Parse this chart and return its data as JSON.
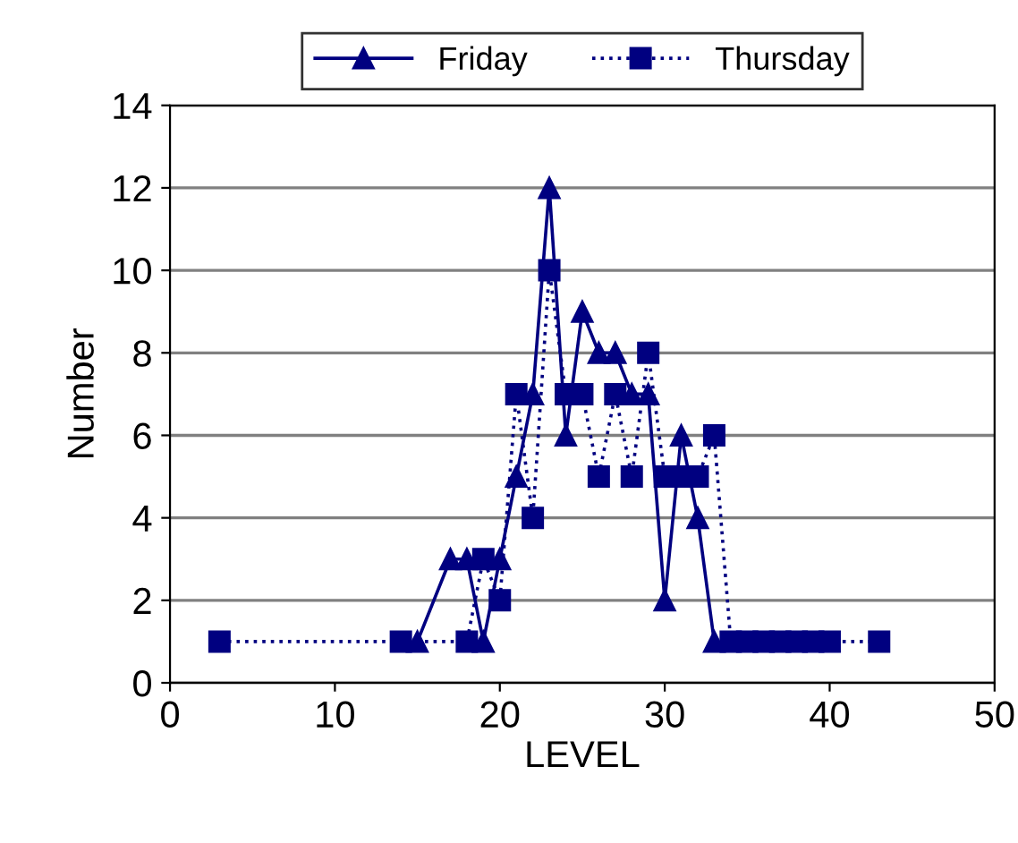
{
  "chart_data": {
    "type": "line",
    "xlabel": "LEVEL",
    "ylabel": "Number",
    "xlim": [
      0,
      50
    ],
    "xticks": [
      0,
      10,
      20,
      30,
      40,
      50
    ],
    "ylim": [
      0,
      14
    ],
    "yticks": [
      0,
      2,
      4,
      6,
      8,
      10,
      12,
      14
    ],
    "grid": "y",
    "legend": "top",
    "series": [
      {
        "name": "Friday",
        "color": "#000080",
        "marker": "triangle",
        "line_style": "solid",
        "x": [
          15,
          17,
          18,
          19,
          20,
          21,
          22,
          23,
          24,
          25,
          26,
          27,
          28,
          29,
          30,
          31,
          32,
          33
        ],
        "values": [
          1,
          3,
          3,
          1,
          3,
          5,
          7,
          12,
          6,
          9,
          8,
          8,
          7,
          7,
          2,
          6,
          4,
          1
        ]
      },
      {
        "name": "Thursday",
        "color": "#000080",
        "marker": "square",
        "line_style": "dotted",
        "x": [
          3,
          14,
          18,
          19,
          20,
          21,
          22,
          23,
          24,
          25,
          26,
          27,
          28,
          29,
          30,
          31,
          32,
          33,
          34,
          35,
          36,
          37,
          38,
          39,
          40,
          43
        ],
        "values": [
          1,
          1,
          1,
          3,
          2,
          7,
          4,
          10,
          7,
          7,
          5,
          7,
          5,
          8,
          5,
          5,
          5,
          6,
          1,
          1,
          1,
          1,
          1,
          1,
          1,
          1
        ]
      }
    ]
  }
}
